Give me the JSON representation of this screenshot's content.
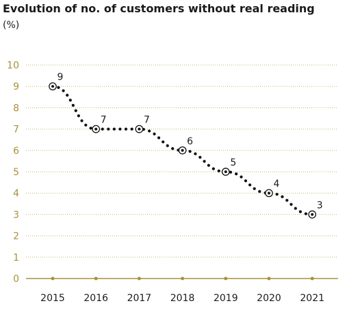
{
  "chart_data": {
    "type": "line",
    "title": "Evolution of no. of customers without real reading",
    "subtitle": "(%)",
    "xlabel": "",
    "ylabel": "",
    "categories": [
      "2015",
      "2016",
      "2017",
      "2018",
      "2019",
      "2020",
      "2021"
    ],
    "values": [
      9,
      7,
      7,
      6,
      5,
      4,
      3
    ],
    "data_labels": [
      "9",
      "7",
      "7",
      "6",
      "5",
      "4",
      "3"
    ],
    "y_ticks": [
      "0",
      "1",
      "2",
      "3",
      "4",
      "5",
      "6",
      "7",
      "8",
      "9",
      "10"
    ],
    "ylim": [
      0,
      10
    ],
    "grid": true,
    "legend": "none",
    "colors": {
      "gridline": "#c9b46a",
      "axis": "#a8913a",
      "series": "#111111",
      "text": "#1a1a1a"
    }
  }
}
